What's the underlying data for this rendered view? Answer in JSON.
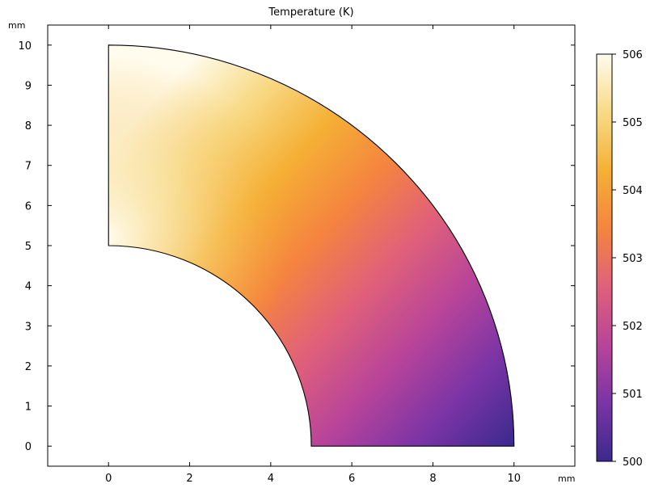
{
  "chart_data": {
    "type": "heatmap",
    "title": "Temperature (K)",
    "x_unit": "mm",
    "y_unit": "mm",
    "xlim": [
      -1.5,
      11.5
    ],
    "ylim": [
      -0.5,
      10.5
    ],
    "x_ticks": [
      0,
      2,
      4,
      6,
      8,
      10
    ],
    "y_ticks": [
      0,
      1,
      2,
      3,
      4,
      5,
      6,
      7,
      8,
      9,
      10
    ],
    "domain": {
      "shape": "quarter-annulus",
      "inner_radius": 5,
      "outer_radius": 10,
      "angle_range_deg": [
        0,
        90
      ]
    },
    "colorbar": {
      "min": 500,
      "max": 506,
      "ticks": [
        500,
        501,
        502,
        503,
        504,
        505,
        506
      ],
      "colormap": [
        "#3b2a8c",
        "#7a34a6",
        "#b8449a",
        "#e0607a",
        "#f5843f",
        "#f5b035",
        "#f8da86",
        "#fffcee"
      ]
    },
    "field": {
      "description_values": [
        {
          "x": 5,
          "y": 0,
          "value": 500.1
        },
        {
          "x": 10,
          "y": 0,
          "value": 500.3
        },
        {
          "x": 0,
          "y": 5,
          "value": 506.0
        },
        {
          "x": 0,
          "y": 10,
          "value": 505.9
        },
        {
          "x": 5,
          "y": 5,
          "value": 504.3
        },
        {
          "x": 7,
          "y": 3.5,
          "value": 502.6
        }
      ]
    },
    "grid": false,
    "legend": "colorbar-right"
  }
}
